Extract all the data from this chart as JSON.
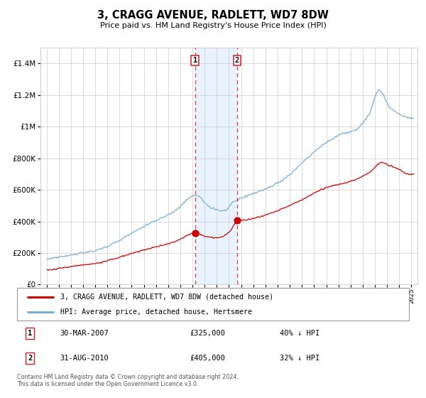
{
  "title": "3, CRAGG AVENUE, RADLETT, WD7 8DW",
  "subtitle": "Price paid vs. HM Land Registry's House Price Index (HPI)",
  "legend_label_red": "3, CRAGG AVENUE, RADLETT, WD7 8DW (detached house)",
  "legend_label_blue": "HPI: Average price, detached house, Hertsmere",
  "transaction1_label": "30-MAR-2007",
  "transaction1_price": "£325,000",
  "transaction1_pct": "40% ↓ HPI",
  "transaction1_year": 2007.21,
  "transaction1_val": 325000,
  "transaction2_label": "31-AUG-2010",
  "transaction2_price": "£405,000",
  "transaction2_pct": "32% ↓ HPI",
  "transaction2_year": 2010.67,
  "transaction2_val": 405000,
  "color_red": "#cc0000",
  "color_blue": "#7aadd4",
  "color_blue_fill": "#ddeeff",
  "color_grid": "#cccccc",
  "color_vline": "#dd4444",
  "footnote_line1": "Contains HM Land Registry data © Crown copyright and database right 2024.",
  "footnote_line2": "This data is licensed under the Open Government Licence v3.0.",
  "xmin": 1994.5,
  "xmax": 2025.5,
  "ymin": 0,
  "ymax": 1500000,
  "yticks": [
    0,
    200000,
    400000,
    600000,
    800000,
    1000000,
    1200000,
    1400000
  ]
}
